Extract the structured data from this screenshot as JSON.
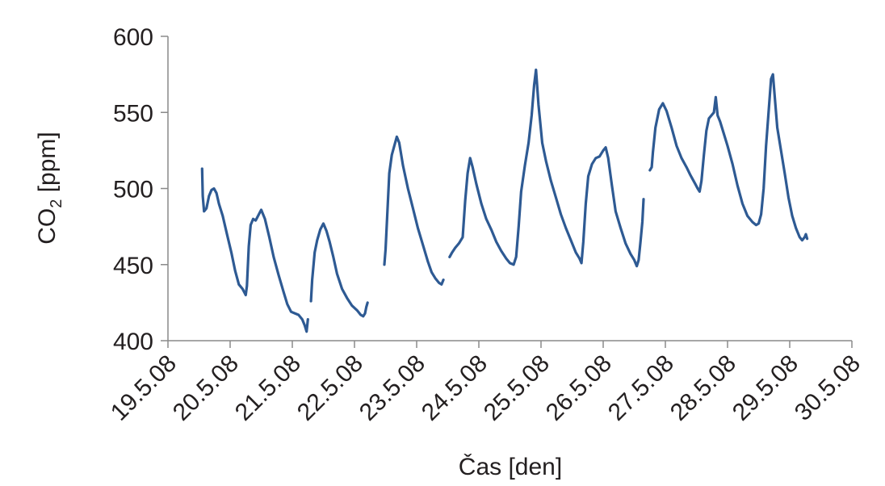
{
  "chart_data": {
    "type": "line",
    "xlabel": "Čas [den]",
    "ylabel_main": "CO",
    "ylabel_sub": "2",
    "ylabel_rest": " [ppm]",
    "ylim": [
      400,
      600
    ],
    "yticks": [
      400,
      450,
      500,
      550,
      600
    ],
    "ytick_labels": [
      "400",
      "450",
      "500",
      "550",
      "600"
    ],
    "xlim": [
      0,
      11
    ],
    "xticks": [
      0,
      1,
      2,
      3,
      4,
      5,
      6,
      7,
      8,
      9,
      10,
      11
    ],
    "xtick_labels": [
      "19.5.08",
      "20.5.08",
      "21.5.08",
      "22.5.08",
      "23.5.08",
      "24.5.08",
      "25.5.08",
      "26.5.08",
      "27.5.08",
      "28.5.08",
      "29.5.08",
      "30.5.08"
    ],
    "grid": false,
    "line_color": "#2e5a93",
    "series": [
      {
        "segments": [
          [
            [
              0.55,
              513
            ],
            [
              0.56,
              495
            ],
            [
              0.58,
              485
            ],
            [
              0.62,
              487
            ],
            [
              0.66,
              495
            ],
            [
              0.7,
              499
            ],
            [
              0.74,
              500
            ],
            [
              0.78,
              497
            ],
            [
              0.82,
              490
            ],
            [
              0.88,
              482
            ],
            [
              0.95,
              470
            ],
            [
              1.02,
              458
            ],
            [
              1.08,
              446
            ],
            [
              1.14,
              437
            ],
            [
              1.2,
              434
            ],
            [
              1.25,
              430
            ],
            [
              1.27,
              436
            ],
            [
              1.3,
              462
            ],
            [
              1.33,
              476
            ],
            [
              1.37,
              480
            ],
            [
              1.41,
              479
            ],
            [
              1.45,
              482
            ],
            [
              1.5,
              486
            ],
            [
              1.56,
              480
            ],
            [
              1.63,
              468
            ],
            [
              1.7,
              455
            ],
            [
              1.78,
              443
            ],
            [
              1.86,
              432
            ],
            [
              1.92,
              424
            ],
            [
              1.98,
              419
            ],
            [
              2.04,
              418
            ],
            [
              2.1,
              417
            ],
            [
              2.16,
              414
            ],
            [
              2.2,
              410
            ],
            [
              2.23,
              406
            ],
            [
              2.25,
              414
            ]
          ],
          [
            [
              2.3,
              426
            ],
            [
              2.32,
              440
            ],
            [
              2.36,
              458
            ],
            [
              2.4,
              466
            ],
            [
              2.45,
              473
            ],
            [
              2.5,
              477
            ],
            [
              2.55,
              472
            ],
            [
              2.6,
              465
            ],
            [
              2.66,
              455
            ],
            [
              2.72,
              444
            ],
            [
              2.8,
              434
            ],
            [
              2.88,
              428
            ],
            [
              2.96,
              423
            ],
            [
              3.04,
              420
            ],
            [
              3.1,
              417
            ],
            [
              3.14,
              416
            ],
            [
              3.17,
              418
            ],
            [
              3.19,
              422
            ],
            [
              3.21,
              425
            ]
          ],
          [
            [
              3.48,
              450
            ],
            [
              3.5,
              460
            ],
            [
              3.53,
              485
            ],
            [
              3.56,
              510
            ],
            [
              3.6,
              522
            ],
            [
              3.64,
              528
            ],
            [
              3.68,
              534
            ],
            [
              3.72,
              530
            ],
            [
              3.78,
              515
            ],
            [
              3.86,
              500
            ],
            [
              3.94,
              487
            ],
            [
              4.02,
              474
            ],
            [
              4.1,
              463
            ],
            [
              4.18,
              452
            ],
            [
              4.24,
              445
            ],
            [
              4.3,
              441
            ],
            [
              4.36,
              438
            ],
            [
              4.4,
              437
            ],
            [
              4.43,
              440
            ]
          ],
          [
            [
              4.53,
              455
            ],
            [
              4.57,
              458
            ],
            [
              4.62,
              461
            ],
            [
              4.68,
              464
            ],
            [
              4.74,
              468
            ],
            [
              4.78,
              492
            ],
            [
              4.82,
              510
            ],
            [
              4.86,
              520
            ],
            [
              4.9,
              514
            ],
            [
              4.96,
              503
            ],
            [
              5.04,
              490
            ],
            [
              5.12,
              480
            ],
            [
              5.2,
              473
            ],
            [
              5.28,
              465
            ],
            [
              5.36,
              459
            ],
            [
              5.44,
              454
            ],
            [
              5.5,
              451
            ],
            [
              5.56,
              450
            ],
            [
              5.6,
              455
            ],
            [
              5.64,
              475
            ],
            [
              5.68,
              498
            ],
            [
              5.74,
              515
            ],
            [
              5.8,
              530
            ],
            [
              5.85,
              548
            ],
            [
              5.89,
              568
            ],
            [
              5.92,
              578
            ],
            [
              5.96,
              555
            ],
            [
              6.02,
              530
            ],
            [
              6.08,
              518
            ],
            [
              6.16,
              505
            ],
            [
              6.24,
              494
            ],
            [
              6.32,
              483
            ],
            [
              6.4,
              474
            ],
            [
              6.48,
              466
            ],
            [
              6.56,
              458
            ],
            [
              6.62,
              454
            ],
            [
              6.65,
              451
            ],
            [
              6.68,
              465
            ],
            [
              6.72,
              490
            ],
            [
              6.76,
              508
            ],
            [
              6.82,
              516
            ],
            [
              6.88,
              520
            ],
            [
              6.94,
              521
            ],
            [
              7.0,
              525
            ],
            [
              7.04,
              527
            ],
            [
              7.08,
              520
            ],
            [
              7.14,
              502
            ],
            [
              7.2,
              485
            ],
            [
              7.28,
              474
            ],
            [
              7.36,
              464
            ],
            [
              7.44,
              457
            ],
            [
              7.5,
              453
            ],
            [
              7.54,
              449
            ],
            [
              7.57,
              453
            ],
            [
              7.6,
              465
            ],
            [
              7.63,
              478
            ],
            [
              7.65,
              493
            ]
          ]
        ]
      },
      {
        "segments": [
          [
            [
              7.75,
              512
            ],
            [
              7.78,
              514
            ],
            [
              7.8,
              524
            ],
            [
              7.84,
              540
            ],
            [
              7.9,
              552
            ],
            [
              7.96,
              556
            ],
            [
              8.02,
              551
            ],
            [
              8.1,
              540
            ],
            [
              8.18,
              528
            ],
            [
              8.26,
              520
            ],
            [
              8.34,
              514
            ],
            [
              8.4,
              509
            ],
            [
              8.44,
              506
            ],
            [
              8.48,
              503
            ],
            [
              8.52,
              500
            ],
            [
              8.55,
              498
            ],
            [
              8.58,
              505
            ],
            [
              8.62,
              522
            ],
            [
              8.66,
              538
            ],
            [
              8.7,
              546
            ],
            [
              8.74,
              548
            ],
            [
              8.78,
              550
            ],
            [
              8.81,
              560
            ],
            [
              8.84,
              548
            ],
            [
              8.88,
              544
            ],
            [
              8.94,
              536
            ],
            [
              9.0,
              528
            ],
            [
              9.08,
              516
            ],
            [
              9.16,
              502
            ],
            [
              9.24,
              490
            ],
            [
              9.32,
              482
            ],
            [
              9.4,
              478
            ],
            [
              9.46,
              476
            ],
            [
              9.5,
              477
            ],
            [
              9.54,
              483
            ],
            [
              9.58,
              500
            ],
            [
              9.62,
              528
            ],
            [
              9.66,
              550
            ],
            [
              9.7,
              572
            ],
            [
              9.73,
              575
            ],
            [
              9.76,
              560
            ],
            [
              9.8,
              540
            ],
            [
              9.86,
              525
            ],
            [
              9.92,
              510
            ],
            [
              9.98,
              494
            ],
            [
              10.04,
              482
            ],
            [
              10.1,
              474
            ],
            [
              10.16,
              468
            ],
            [
              10.2,
              466
            ],
            [
              10.24,
              468
            ],
            [
              10.26,
              470
            ],
            [
              10.28,
              467
            ]
          ]
        ]
      }
    ]
  }
}
